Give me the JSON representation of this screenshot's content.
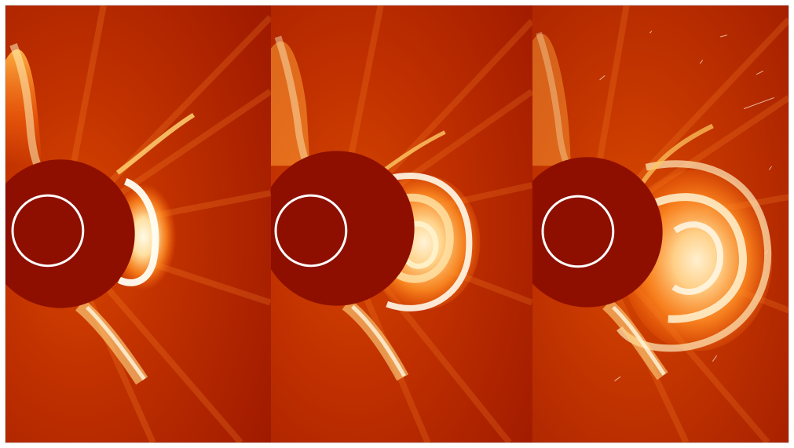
{
  "image": {
    "subject": "coronagraph-sequence",
    "panel_count": 3,
    "colors": {
      "background": "#b42300",
      "occulter": "#8e0f00",
      "sun_outline": "#ffffff",
      "bright_plasma": "#fff3cf",
      "mid_plasma": "#ff9a2e"
    },
    "panels": [
      {
        "id": "panel-1"
      },
      {
        "id": "panel-2"
      },
      {
        "id": "panel-3"
      }
    ]
  }
}
